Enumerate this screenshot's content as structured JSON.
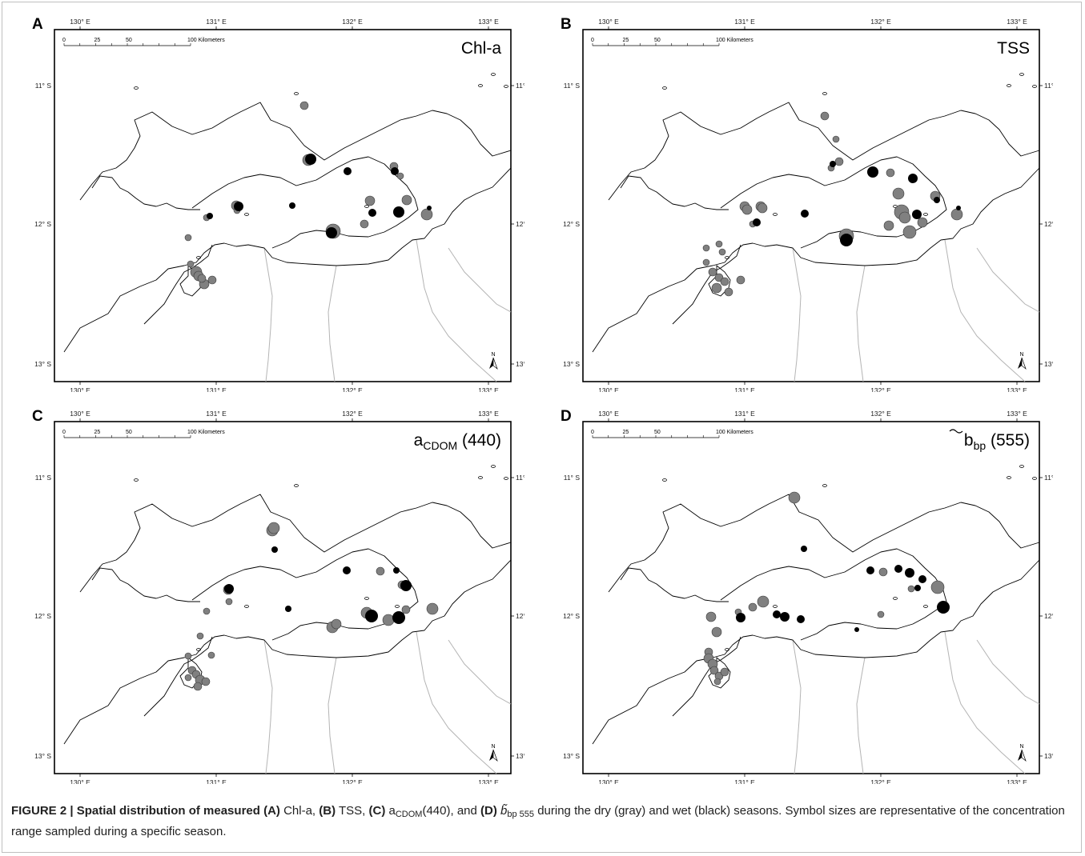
{
  "figure": {
    "panels": [
      {
        "letter": "A",
        "param": "Chl-a",
        "param_sub": "",
        "param_suffix": ""
      },
      {
        "letter": "B",
        "param": "TSS",
        "param_sub": "",
        "param_suffix": ""
      },
      {
        "letter": "C",
        "param": "a",
        "param_sub": "CDOM",
        "param_suffix": " (440)"
      },
      {
        "letter": "D",
        "param": "b",
        "param_sub": "bp",
        "param_suffix": " (555)"
      }
    ],
    "lon_ticks": [
      "130° E",
      "131° E",
      "132° E",
      "133° E"
    ],
    "lat_ticks": [
      "11° S",
      "12° S",
      "13° S"
    ],
    "scale_bar": {
      "labels": [
        "0",
        "25",
        "50",
        "100 Kilometers"
      ]
    },
    "north_arrow": "N",
    "colors": {
      "dry_season": "#808080",
      "wet_season": "#000000",
      "coast": "#000000",
      "land_boundary": "#b4b4b4"
    }
  },
  "caption": {
    "lead": "FIGURE 2 | Spatial distribution of measured",
    "a_tag": "(A)",
    "a_text": "Chl-a,",
    "b_tag": "(B)",
    "b_text": "TSS,",
    "c_tag": "(C)",
    "c_pre": "a",
    "c_sub": "CDOM",
    "c_post": "(440), and",
    "d_tag": "(D)",
    "d_pre": "b̃",
    "d_sub": "bp 555",
    "rest": "during the dry (gray) and wet (black) seasons. Symbol sizes are representative of the concentration range sampled during a specific season."
  }
}
